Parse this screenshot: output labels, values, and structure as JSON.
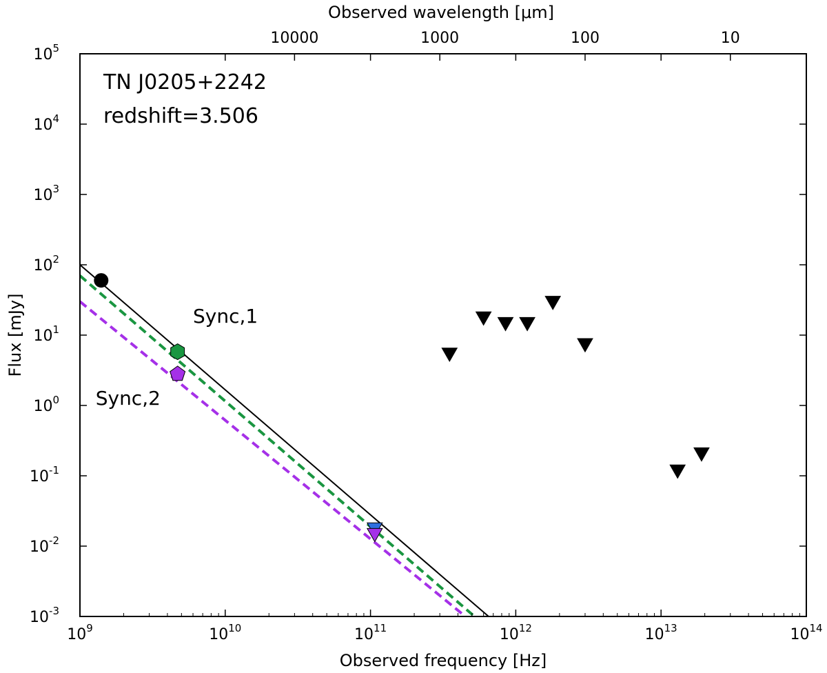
{
  "chart_data": {
    "type": "scatter",
    "title": "TN J0205+2242",
    "subtitle": "redshift=3.506",
    "xlabel": "Observed frequency [Hz]",
    "ylabel": "Flux [mJy]",
    "x2label": "Observed wavelength [μm]",
    "xscale": "log",
    "yscale": "log",
    "xlim": [
      1000000000.0,
      100000000000000.0
    ],
    "ylim": [
      0.001,
      100000
    ],
    "x_ticks": [
      {
        "base": "10",
        "exp": "9",
        "value": 1000000000.0
      },
      {
        "base": "10",
        "exp": "10",
        "value": 10000000000.0
      },
      {
        "base": "10",
        "exp": "11",
        "value": 100000000000.0
      },
      {
        "base": "10",
        "exp": "12",
        "value": 1000000000000.0
      },
      {
        "base": "10",
        "exp": "13",
        "value": 10000000000000.0
      },
      {
        "base": "10",
        "exp": "14",
        "value": 100000000000000.0
      }
    ],
    "y_ticks": [
      {
        "base": "10",
        "exp": "-3",
        "value": 0.001
      },
      {
        "base": "10",
        "exp": "-2",
        "value": 0.01
      },
      {
        "base": "10",
        "exp": "-1",
        "value": 0.1
      },
      {
        "base": "10",
        "exp": "0",
        "value": 1
      },
      {
        "base": "10",
        "exp": "1",
        "value": 10
      },
      {
        "base": "10",
        "exp": "2",
        "value": 100
      },
      {
        "base": "10",
        "exp": "3",
        "value": 1000
      },
      {
        "base": "10",
        "exp": "4",
        "value": 10000
      },
      {
        "base": "10",
        "exp": "5",
        "value": 100000
      }
    ],
    "top_ticks": [
      {
        "label": "10000",
        "wavelength_um": 10000
      },
      {
        "label": "1000",
        "wavelength_um": 1000
      },
      {
        "label": "100",
        "wavelength_um": 100
      },
      {
        "label": "10",
        "wavelength_um": 10
      }
    ],
    "lines": [
      {
        "name": "total-fit",
        "color": "#000000",
        "style": "solid",
        "points": [
          [
            1000000000.0,
            100
          ],
          [
            650000000000.0,
            0.001
          ]
        ]
      },
      {
        "name": "sync-1-fit",
        "color": "#1a9641",
        "style": "dashed",
        "points": [
          [
            1000000000.0,
            70
          ],
          [
            520000000000.0,
            0.001
          ]
        ]
      },
      {
        "name": "sync-2-fit",
        "color": "#a530e8",
        "style": "dashed",
        "points": [
          [
            1000000000.0,
            30
          ],
          [
            450000000000.0,
            0.001
          ]
        ]
      }
    ],
    "detections": [
      {
        "name": "radio-point",
        "x": 1400000000.0,
        "y": 60,
        "marker": "circle",
        "color": "#000000"
      },
      {
        "name": "sync-1-point",
        "x": 4700000000.0,
        "y": 5.8,
        "marker": "hexagon",
        "color": "#1a9641"
      },
      {
        "name": "sync-2-point",
        "x": 4700000000.0,
        "y": 2.8,
        "marker": "pentagon",
        "color": "#a530e8"
      }
    ],
    "upper_limits": [
      {
        "x": 350000000000.0,
        "y": 5.5,
        "color": "#000000"
      },
      {
        "x": 600000000000.0,
        "y": 18,
        "color": "#000000"
      },
      {
        "x": 850000000000.0,
        "y": 15,
        "color": "#000000"
      },
      {
        "x": 1200000000000.0,
        "y": 15,
        "color": "#000000"
      },
      {
        "x": 1800000000000.0,
        "y": 30,
        "color": "#000000"
      },
      {
        "x": 3000000000000.0,
        "y": 7.5,
        "color": "#000000"
      },
      {
        "x": 13000000000000.0,
        "y": 0.12,
        "color": "#000000"
      },
      {
        "x": 19000000000000.0,
        "y": 0.21,
        "color": "#000000"
      },
      {
        "x": 107000000000.0,
        "y": 0.018,
        "color": "#2f6fdf"
      },
      {
        "x": 107000000000.0,
        "y": 0.015,
        "color": "#a530e8"
      }
    ],
    "annotations": [
      {
        "name": "sync-1-label",
        "text": "Sync,1",
        "x": 6000000000.0,
        "y": 15,
        "color": "#1a9641"
      },
      {
        "name": "sync-2-label",
        "text": "Sync,2",
        "x": 1100000000.0,
        "y": 1.6,
        "color": "#a530e8"
      }
    ]
  }
}
